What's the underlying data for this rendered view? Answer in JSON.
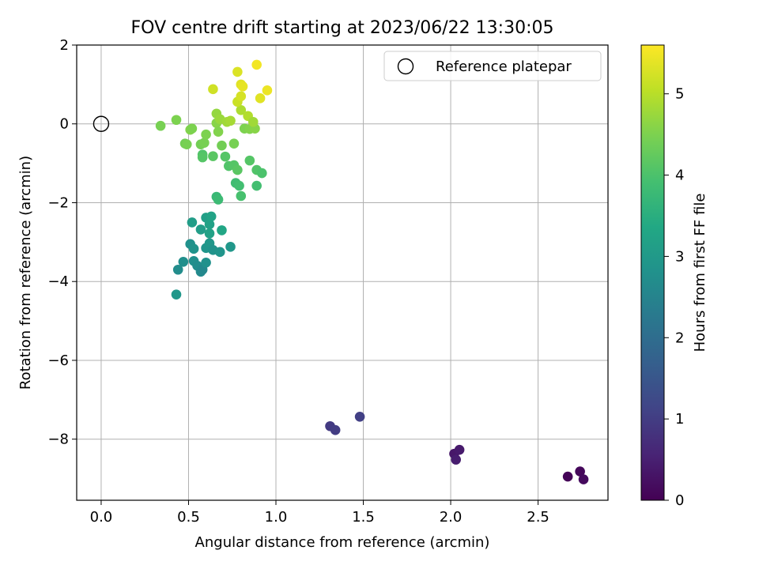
{
  "chart_data": {
    "type": "scatter",
    "title": "FOV centre drift starting at 2023/06/22 13:30:05",
    "xlabel": "Angular distance from reference (arcmin)",
    "ylabel": "Rotation from reference (arcmin)",
    "xlim": [
      -0.14,
      2.9
    ],
    "ylim": [
      -9.55,
      2.0
    ],
    "xticks": [
      0.0,
      0.5,
      1.0,
      1.5,
      2.0,
      2.5
    ],
    "xtick_labels": [
      "0.0",
      "0.5",
      "1.0",
      "1.5",
      "2.0",
      "2.5"
    ],
    "yticks": [
      2,
      0,
      -2,
      -4,
      -6,
      -8
    ],
    "ytick_labels": [
      "2",
      "0",
      "−2",
      "−4",
      "−6",
      "−8"
    ],
    "grid": true,
    "legend": {
      "placement": "upper-right",
      "entries": [
        {
          "label": "Reference platepar",
          "marker": "hollow-circle"
        }
      ]
    },
    "reference_point": {
      "x": 0.0,
      "y": 0.0
    },
    "colorbar": {
      "label": "Hours from first FF file",
      "colormap": "viridis",
      "range": [
        0,
        5.6
      ],
      "ticks": [
        0,
        1,
        2,
        3,
        4,
        5
      ],
      "tick_labels": [
        "0",
        "1",
        "2",
        "3",
        "4",
        "5"
      ]
    },
    "points": [
      {
        "x": 2.67,
        "y": -8.95,
        "c": 0.05
      },
      {
        "x": 2.74,
        "y": -8.82,
        "c": 0.1
      },
      {
        "x": 2.76,
        "y": -9.02,
        "c": 0.15
      },
      {
        "x": 2.02,
        "y": -8.37,
        "c": 0.35
      },
      {
        "x": 2.05,
        "y": -8.27,
        "c": 0.4
      },
      {
        "x": 2.03,
        "y": -8.52,
        "c": 0.45
      },
      {
        "x": 1.31,
        "y": -7.67,
        "c": 0.95
      },
      {
        "x": 1.34,
        "y": -7.77,
        "c": 1.0
      },
      {
        "x": 1.48,
        "y": -7.43,
        "c": 1.05
      },
      {
        "x": 0.43,
        "y": -4.33,
        "c": 2.95
      },
      {
        "x": 0.44,
        "y": -3.7,
        "c": 2.7
      },
      {
        "x": 0.47,
        "y": -3.5,
        "c": 2.75
      },
      {
        "x": 0.51,
        "y": -3.05,
        "c": 2.8
      },
      {
        "x": 0.53,
        "y": -3.17,
        "c": 2.85
      },
      {
        "x": 0.53,
        "y": -3.48,
        "c": 2.75
      },
      {
        "x": 0.55,
        "y": -3.6,
        "c": 2.7
      },
      {
        "x": 0.57,
        "y": -3.75,
        "c": 2.65
      },
      {
        "x": 0.58,
        "y": -3.7,
        "c": 2.6
      },
      {
        "x": 0.6,
        "y": -3.52,
        "c": 2.8
      },
      {
        "x": 0.6,
        "y": -3.15,
        "c": 2.9
      },
      {
        "x": 0.62,
        "y": -3.03,
        "c": 2.95
      },
      {
        "x": 0.64,
        "y": -3.2,
        "c": 2.85
      },
      {
        "x": 0.68,
        "y": -3.25,
        "c": 2.9
      },
      {
        "x": 0.74,
        "y": -3.12,
        "c": 2.95
      },
      {
        "x": 0.52,
        "y": -2.5,
        "c": 3.1
      },
      {
        "x": 0.57,
        "y": -2.68,
        "c": 3.1
      },
      {
        "x": 0.6,
        "y": -2.38,
        "c": 3.15
      },
      {
        "x": 0.62,
        "y": -2.55,
        "c": 3.2
      },
      {
        "x": 0.63,
        "y": -2.35,
        "c": 3.25
      },
      {
        "x": 0.62,
        "y": -2.78,
        "c": 3.2
      },
      {
        "x": 0.69,
        "y": -2.7,
        "c": 3.3
      },
      {
        "x": 0.66,
        "y": -1.85,
        "c": 3.75
      },
      {
        "x": 0.67,
        "y": -1.92,
        "c": 3.8
      },
      {
        "x": 0.77,
        "y": -1.5,
        "c": 3.85
      },
      {
        "x": 0.79,
        "y": -1.57,
        "c": 3.9
      },
      {
        "x": 0.8,
        "y": -1.83,
        "c": 3.95
      },
      {
        "x": 0.89,
        "y": -1.57,
        "c": 3.9
      },
      {
        "x": 0.58,
        "y": -0.78,
        "c": 4.05
      },
      {
        "x": 0.58,
        "y": -0.85,
        "c": 4.1
      },
      {
        "x": 0.64,
        "y": -0.82,
        "c": 4.15
      },
      {
        "x": 0.71,
        "y": -0.83,
        "c": 4.1
      },
      {
        "x": 0.73,
        "y": -1.07,
        "c": 4.05
      },
      {
        "x": 0.76,
        "y": -1.05,
        "c": 4.1
      },
      {
        "x": 0.78,
        "y": -1.17,
        "c": 4.15
      },
      {
        "x": 0.85,
        "y": -0.93,
        "c": 4.1
      },
      {
        "x": 0.89,
        "y": -1.17,
        "c": 4.05
      },
      {
        "x": 0.92,
        "y": -1.25,
        "c": 4.0
      },
      {
        "x": 0.34,
        "y": -0.05,
        "c": 4.45
      },
      {
        "x": 0.43,
        "y": 0.1,
        "c": 4.5
      },
      {
        "x": 0.48,
        "y": -0.5,
        "c": 4.4
      },
      {
        "x": 0.49,
        "y": -0.52,
        "c": 4.45
      },
      {
        "x": 0.51,
        "y": -0.15,
        "c": 4.55
      },
      {
        "x": 0.52,
        "y": -0.12,
        "c": 4.5
      },
      {
        "x": 0.57,
        "y": -0.52,
        "c": 4.4
      },
      {
        "x": 0.59,
        "y": -0.48,
        "c": 4.45
      },
      {
        "x": 0.6,
        "y": -0.27,
        "c": 4.5
      },
      {
        "x": 0.66,
        "y": 0.02,
        "c": 4.6
      },
      {
        "x": 0.67,
        "y": -0.2,
        "c": 4.55
      },
      {
        "x": 0.69,
        "y": -0.55,
        "c": 4.4
      },
      {
        "x": 0.76,
        "y": -0.5,
        "c": 4.45
      },
      {
        "x": 0.82,
        "y": -0.12,
        "c": 4.5
      },
      {
        "x": 0.85,
        "y": -0.13,
        "c": 4.55
      },
      {
        "x": 0.88,
        "y": -0.12,
        "c": 4.6
      },
      {
        "x": 0.66,
        "y": 0.26,
        "c": 4.7
      },
      {
        "x": 0.68,
        "y": 0.12,
        "c": 4.75
      },
      {
        "x": 0.72,
        "y": 0.05,
        "c": 4.8
      },
      {
        "x": 0.74,
        "y": 0.08,
        "c": 4.85
      },
      {
        "x": 0.8,
        "y": 0.35,
        "c": 4.9
      },
      {
        "x": 0.84,
        "y": 0.2,
        "c": 4.95
      },
      {
        "x": 0.87,
        "y": 0.05,
        "c": 4.8
      },
      {
        "x": 0.64,
        "y": 0.88,
        "c": 5.2
      },
      {
        "x": 0.78,
        "y": 1.32,
        "c": 5.3
      },
      {
        "x": 0.78,
        "y": 0.56,
        "c": 5.15
      },
      {
        "x": 0.8,
        "y": 0.7,
        "c": 5.25
      },
      {
        "x": 0.8,
        "y": 1.0,
        "c": 5.35
      },
      {
        "x": 0.81,
        "y": 0.95,
        "c": 5.4
      },
      {
        "x": 0.89,
        "y": 1.5,
        "c": 5.5
      },
      {
        "x": 0.91,
        "y": 0.65,
        "c": 5.35
      },
      {
        "x": 0.95,
        "y": 0.85,
        "c": 5.45
      }
    ]
  }
}
